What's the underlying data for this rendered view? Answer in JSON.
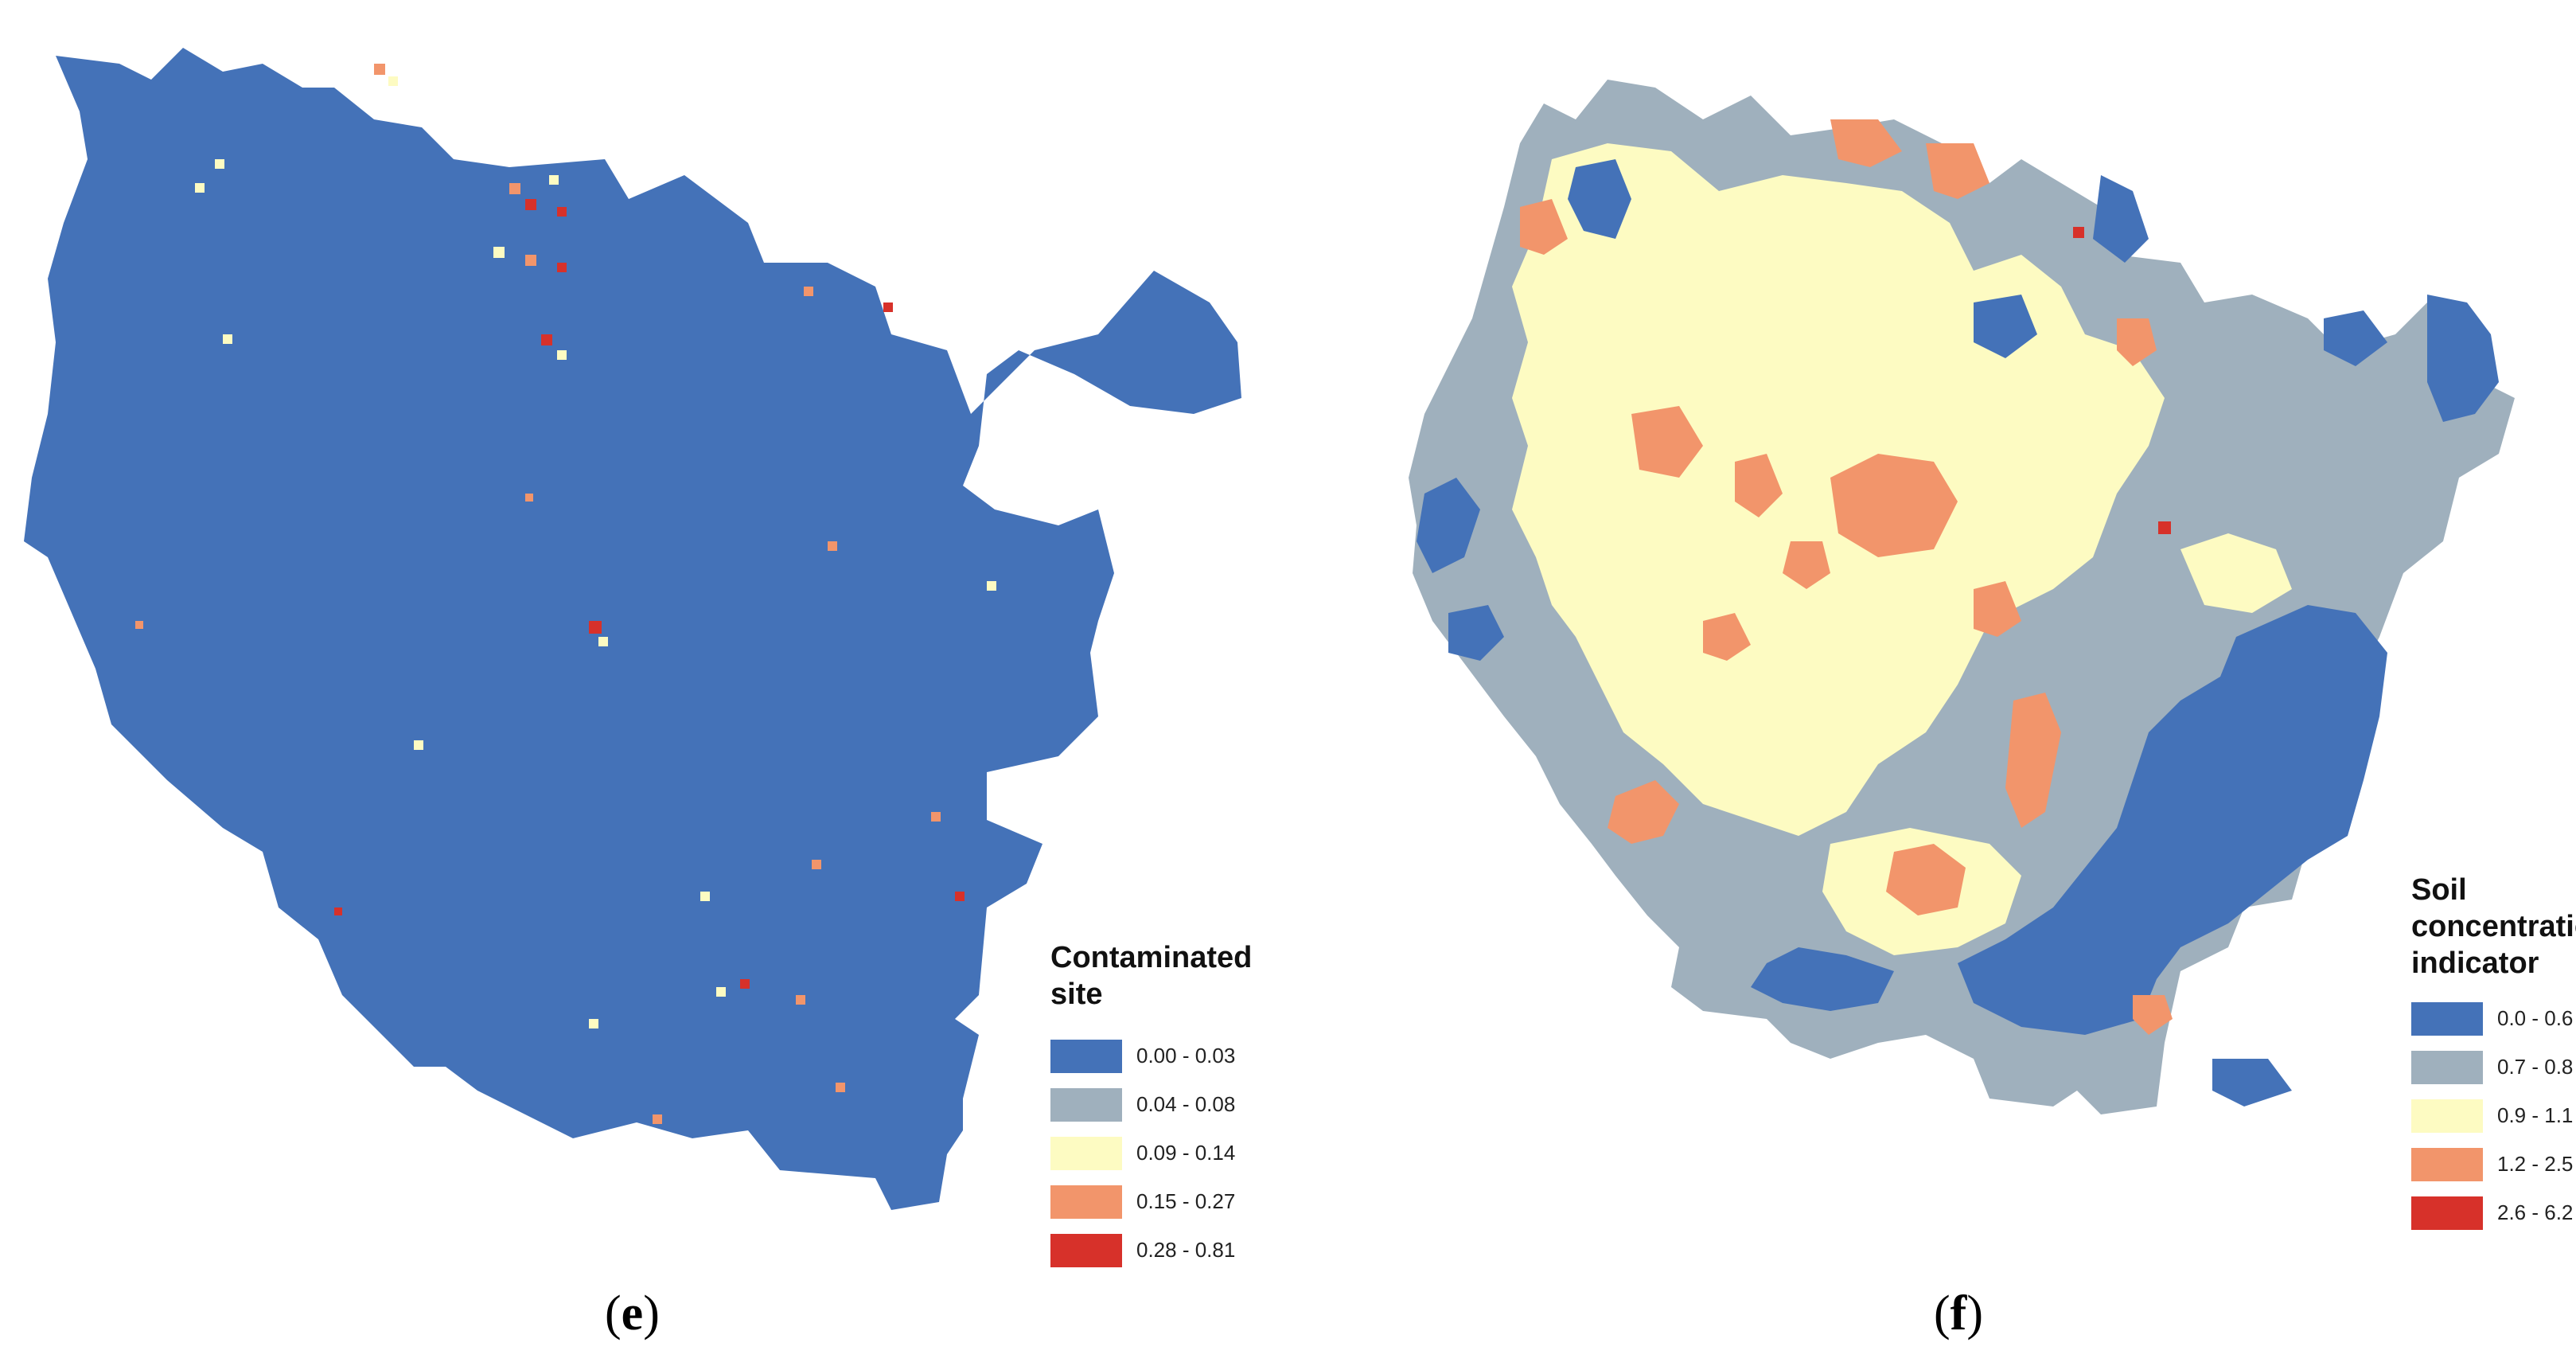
{
  "panels": [
    {
      "id": "e",
      "caption_open": "(",
      "caption_letter": "e",
      "caption_close": ")",
      "legend": {
        "title": "Contaminated\nsite",
        "classes": [
          {
            "label": "0.00 - 0.03",
            "color": "#4472b8"
          },
          {
            "label": "0.04 - 0.08",
            "color": "#9fb0bd"
          },
          {
            "label": "0.09 - 0.14",
            "color": "#fdfbc2"
          },
          {
            "label": "0.15 - 0.27",
            "color": "#f2956b"
          },
          {
            "label": "0.28 - 0.81",
            "color": "#d7312a"
          }
        ]
      }
    },
    {
      "id": "f",
      "caption_open": "(",
      "caption_letter": "f",
      "caption_close": ")",
      "legend": {
        "title": "Soil\nconcentration\nindicator",
        "classes": [
          {
            "label": "0.0 - 0.6",
            "color": "#4472b8"
          },
          {
            "label": "0.7 - 0.8",
            "color": "#9fb0bd"
          },
          {
            "label": "0.9 - 1.1",
            "color": "#fdfbc2"
          },
          {
            "label": "1.2 - 2.5",
            "color": "#f2956b"
          },
          {
            "label": "2.6 - 6.2",
            "color": "#d7312a"
          }
        ]
      }
    }
  ]
}
